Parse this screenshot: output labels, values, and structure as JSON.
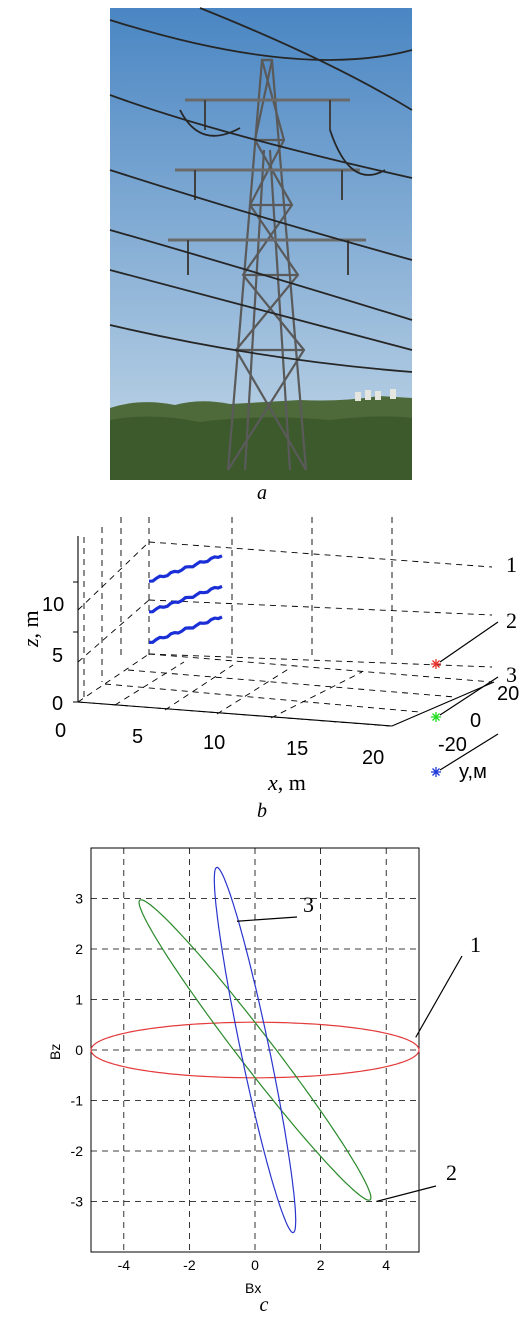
{
  "photo": {
    "caption": "a",
    "sky_top": "#4a86c3",
    "sky_bottom": "#c4d8e8",
    "ground": "#4f6a3a"
  },
  "chart_data": [
    {
      "type": "scatter",
      "panel": "b",
      "caption": "b",
      "xlabel": "x, m",
      "ylabel": "y,м",
      "zlabel": "z, m",
      "x_ticks": [
        "0",
        "5",
        "10",
        "15",
        "20"
      ],
      "y_ticks": [
        "-20",
        "0",
        "20"
      ],
      "z_ticks": [
        "0",
        "5",
        "10"
      ],
      "xlim": [
        0,
        23
      ],
      "ylim": [
        -30,
        30
      ],
      "zlim": [
        0,
        14
      ],
      "grid": true,
      "conductors": {
        "color": "#1a2fd6",
        "x": 5.5,
        "heights_z": [
          8,
          11,
          14
        ]
      },
      "points": [
        {
          "id": "1",
          "x": 22,
          "y": 0,
          "z": 12,
          "color": "#e8312b"
        },
        {
          "id": "2",
          "x": 22,
          "y": 0,
          "z": 7,
          "color": "#22dd22"
        },
        {
          "id": "3",
          "x": 22,
          "y": 0,
          "z": 2,
          "color": "#1f3ad8"
        }
      ],
      "point_labels": [
        "1",
        "2",
        "3"
      ]
    },
    {
      "type": "line",
      "panel": "c",
      "caption": "c",
      "xlabel": "Bx",
      "ylabel": "Bz",
      "x_ticks": [
        "-4",
        "-2",
        "0",
        "2",
        "4"
      ],
      "y_ticks": [
        "3",
        "2",
        "1",
        "0",
        "-1",
        "-2",
        "-3"
      ],
      "xlim": [
        -5,
        5
      ],
      "ylim": [
        -4,
        4
      ],
      "grid": true,
      "series": [
        {
          "label": "1",
          "color": "#e33b3b",
          "center": [
            0,
            0
          ],
          "semi_major": 5.0,
          "semi_minor": 0.55,
          "angle_deg": 0
        },
        {
          "label": "2",
          "color": "#2a8a2a",
          "center": [
            0,
            0
          ],
          "semi_major": 4.6,
          "semi_minor": 0.42,
          "angle_deg": -40
        },
        {
          "label": "3",
          "color": "#2a35cc",
          "center": [
            0,
            0
          ],
          "semi_major": 3.8,
          "semi_minor": 0.42,
          "angle_deg": -72
        }
      ]
    }
  ]
}
